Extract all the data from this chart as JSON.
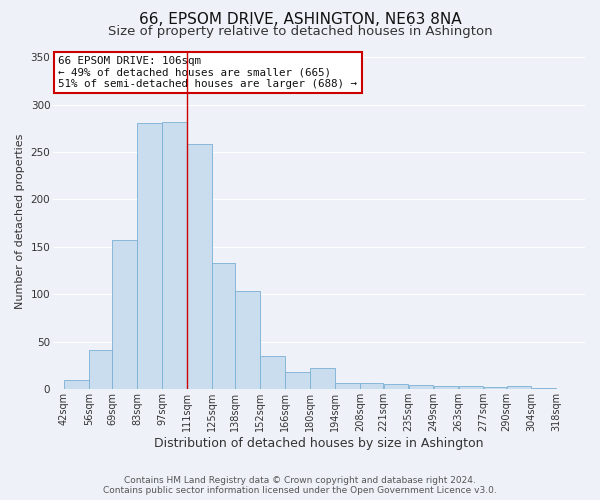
{
  "title": "66, EPSOM DRIVE, ASHINGTON, NE63 8NA",
  "subtitle": "Size of property relative to detached houses in Ashington",
  "xlabel": "Distribution of detached houses by size in Ashington",
  "ylabel": "Number of detached properties",
  "bar_color": "#c9ddef",
  "bar_edge_color": "#7aafd4",
  "bar_left_edges": [
    42,
    56,
    69,
    83,
    97,
    111,
    125,
    138,
    152,
    166,
    180,
    194,
    208,
    221,
    235,
    249,
    263,
    277,
    290,
    304
  ],
  "bar_widths": [
    14,
    13,
    14,
    14,
    14,
    14,
    13,
    14,
    14,
    14,
    14,
    14,
    13,
    14,
    14,
    14,
    14,
    13,
    14,
    14
  ],
  "bar_heights": [
    10,
    41,
    157,
    281,
    282,
    258,
    133,
    103,
    35,
    18,
    22,
    7,
    6,
    5,
    4,
    3,
    3,
    2,
    3,
    1
  ],
  "tick_labels": [
    "42sqm",
    "56sqm",
    "69sqm",
    "83sqm",
    "97sqm",
    "111sqm",
    "125sqm",
    "138sqm",
    "152sqm",
    "166sqm",
    "180sqm",
    "194sqm",
    "208sqm",
    "221sqm",
    "235sqm",
    "249sqm",
    "263sqm",
    "277sqm",
    "290sqm",
    "304sqm",
    "318sqm"
  ],
  "tick_positions": [
    42,
    56,
    69,
    83,
    97,
    111,
    125,
    138,
    152,
    166,
    180,
    194,
    208,
    221,
    235,
    249,
    263,
    277,
    290,
    304,
    318
  ],
  "xlim_left": 36,
  "xlim_right": 334,
  "ylim": [
    0,
    355
  ],
  "yticks": [
    0,
    50,
    100,
    150,
    200,
    250,
    300,
    350
  ],
  "marker_x": 111,
  "marker_color": "#cc0000",
  "annotation_title": "66 EPSOM DRIVE: 106sqm",
  "annotation_line1": "← 49% of detached houses are smaller (665)",
  "annotation_line2": "51% of semi-detached houses are larger (688) →",
  "annotation_box_color": "#ffffff",
  "annotation_box_edge": "#cc0000",
  "footer1": "Contains HM Land Registry data © Crown copyright and database right 2024.",
  "footer2": "Contains public sector information licensed under the Open Government Licence v3.0.",
  "bg_color": "#eef2f8",
  "grid_color": "#ffffff",
  "title_fontsize": 11,
  "subtitle_fontsize": 9.5,
  "xlabel_fontsize": 9,
  "ylabel_fontsize": 8,
  "tick_fontsize": 7,
  "footer_fontsize": 6.5,
  "annotation_fontsize": 7.8
}
